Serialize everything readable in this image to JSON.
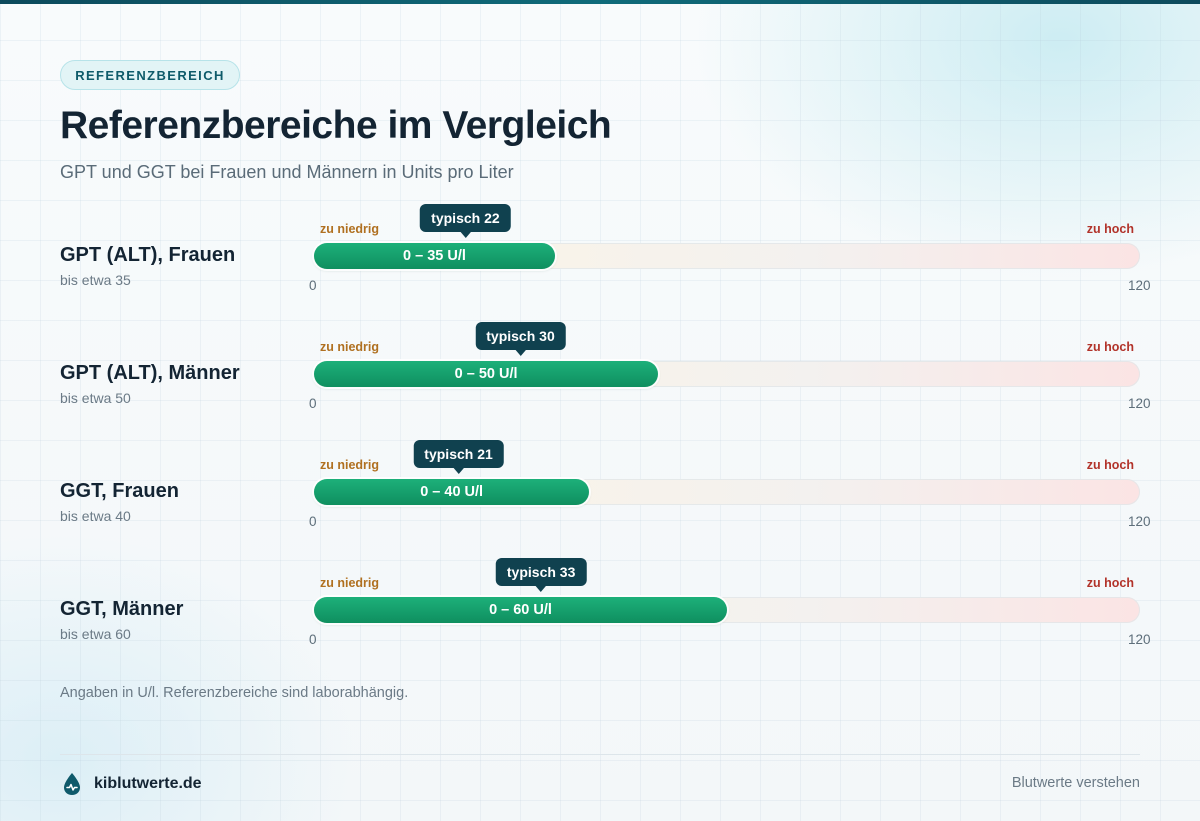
{
  "badge": "REFERENZBEREICH",
  "title": "Referenzbereiche im Vergleich",
  "subtitle": "GPT und GGT bei Frauen und Männern in Units pro Liter",
  "chart_data": {
    "type": "bar",
    "orientation": "horizontal",
    "xlim": [
      0,
      120
    ],
    "axis_min_label": "0",
    "axis_max_label": "120",
    "zone_low_label": "zu niedrig",
    "zone_high_label": "zu hoch",
    "rows": [
      {
        "label": "GPT (ALT), Frauen",
        "sub": "bis etwa 35",
        "min": 0,
        "max": 35,
        "range_label": "0 – 35 U/l",
        "typical": 22,
        "typical_label": "typisch 22"
      },
      {
        "label": "GPT (ALT), Männer",
        "sub": "bis etwa 50",
        "min": 0,
        "max": 50,
        "range_label": "0 – 50 U/l",
        "typical": 30,
        "typical_label": "typisch 30"
      },
      {
        "label": "GGT, Frauen",
        "sub": "bis etwa 40",
        "min": 0,
        "max": 40,
        "range_label": "0 – 40 U/l",
        "typical": 21,
        "typical_label": "typisch 21"
      },
      {
        "label": "GGT, Männer",
        "sub": "bis etwa 60",
        "min": 0,
        "max": 60,
        "range_label": "0 – 60 U/l",
        "typical": 33,
        "typical_label": "typisch 33"
      }
    ]
  },
  "footnote": "Angaben in U/l. Referenzbereiche sind laborabhängig.",
  "footer": {
    "brand": "kiblutwerte.de",
    "tagline": "Blutwerte verstehen",
    "brand_icon": "blood-drop-icon"
  },
  "colors": {
    "accent": "#0f8f5f",
    "tooltip": "#10414f",
    "low": "#b07020",
    "high": "#b2332a"
  }
}
